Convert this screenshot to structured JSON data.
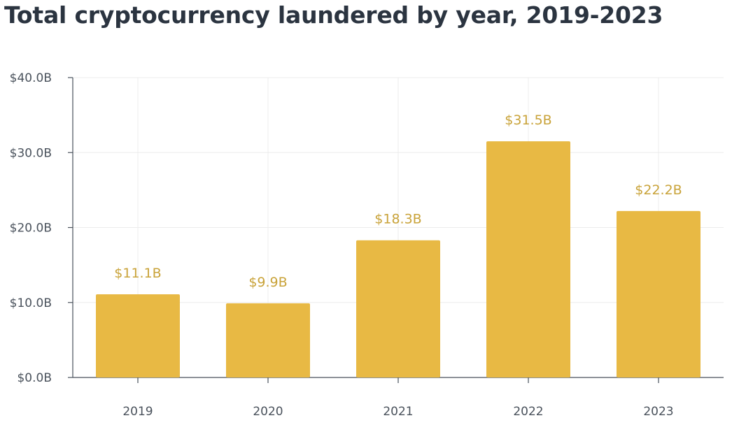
{
  "chart_data": {
    "type": "bar",
    "title": "Total cryptocurrency laundered by year, 2019-2023",
    "categories": [
      "2019",
      "2020",
      "2021",
      "2022",
      "2023"
    ],
    "values": [
      11.1,
      9.9,
      18.3,
      31.5,
      22.2
    ],
    "data_labels": [
      "$11.1B",
      "$9.9B",
      "$18.3B",
      "$31.5B",
      "$22.2B"
    ],
    "y_ticks": [
      0,
      10,
      20,
      30,
      40
    ],
    "y_tick_labels": [
      "$0.0B",
      "$10.0B",
      "$20.0B",
      "$30.0B",
      "$40.0B"
    ],
    "ylim": [
      0,
      40
    ],
    "xlabel": "",
    "ylabel": "",
    "grid": true,
    "legend": "none",
    "colors": {
      "bar": "#e8b944",
      "data_label": "#c9a33a",
      "axis": "#4a525c",
      "grid": "#ececec",
      "title": "#2b3440"
    }
  }
}
